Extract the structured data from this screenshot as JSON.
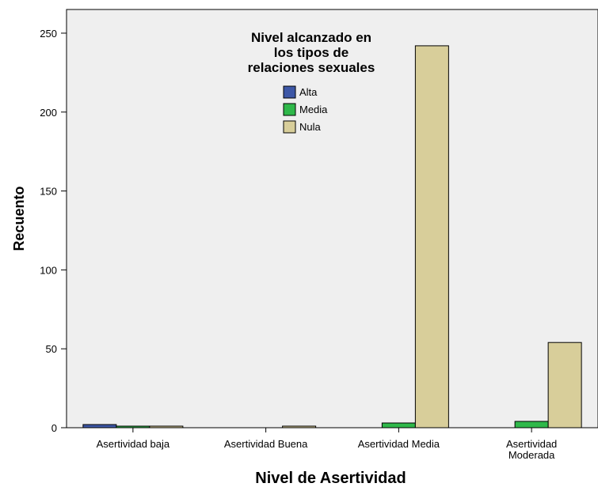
{
  "chart_data": {
    "type": "bar",
    "xlabel": "Nivel de Asertividad",
    "ylabel": "Recuento",
    "ylim": [
      0,
      265
    ],
    "yticks": [
      0,
      50,
      100,
      150,
      200,
      250
    ],
    "categories": [
      [
        "Asertividad baja"
      ],
      [
        "Asertividad Buena"
      ],
      [
        "Asertividad Media"
      ],
      [
        "Asertividad",
        "Moderada"
      ]
    ],
    "legend": {
      "title": [
        "Nivel alcanzado en",
        "los tipos de",
        "relaciones sexuales"
      ],
      "placement": "top-center"
    },
    "series": [
      {
        "name": "Alta",
        "color": "#3d57a6",
        "values": [
          2,
          0,
          0,
          0
        ]
      },
      {
        "name": "Media",
        "color": "#2fb84a",
        "values": [
          1,
          0,
          3,
          4
        ]
      },
      {
        "name": "Nula",
        "color": "#d8ce9a",
        "values": [
          1,
          1,
          242,
          54
        ]
      }
    ],
    "plot_background": "#efefef",
    "grid": false
  }
}
